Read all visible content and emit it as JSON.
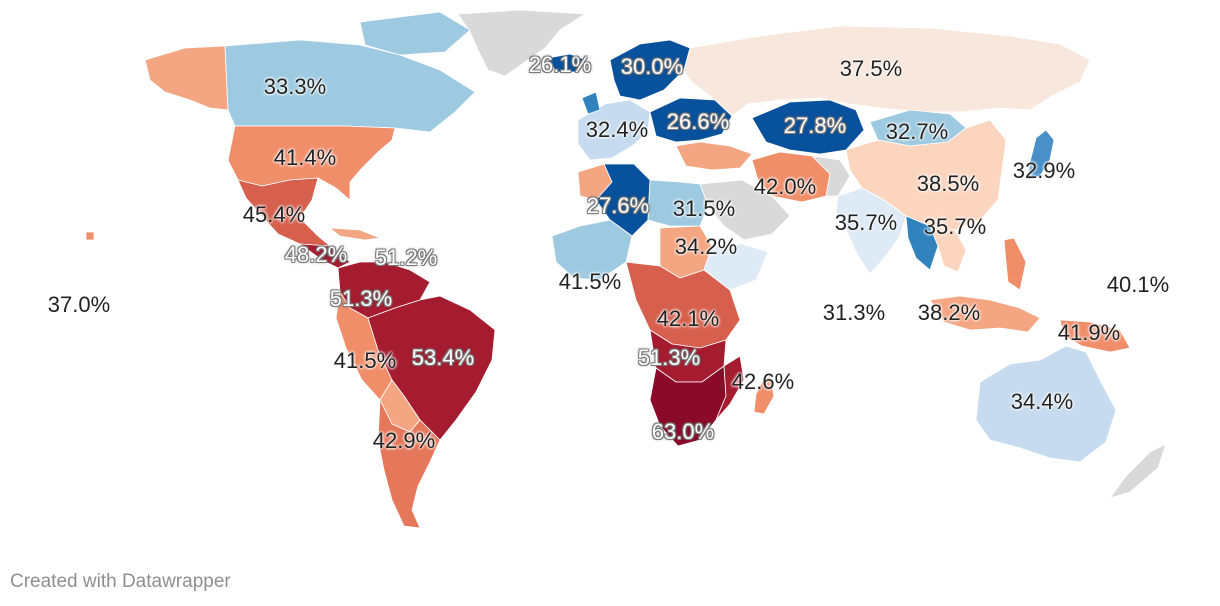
{
  "credit": "Created with Datawrapper",
  "legend_scale": {
    "colors": [
      "#08519c",
      "#3182bd",
      "#9ecae1",
      "#deebf7",
      "#f7e7dd",
      "#f4a582",
      "#d6604d",
      "#a51c30",
      "#8b0a2a"
    ],
    "no_data_color": "#d9d9d9"
  },
  "labels": [
    {
      "id": "iceland",
      "text": "26.1%",
      "style": "light"
    },
    {
      "id": "scandinavia",
      "text": "30.0%",
      "style": "light"
    },
    {
      "id": "russia",
      "text": "37.5%",
      "style": "dark"
    },
    {
      "id": "canada",
      "text": "33.3%",
      "style": "dark"
    },
    {
      "id": "western-europe",
      "text": "32.4%",
      "style": "dark"
    },
    {
      "id": "central-europe",
      "text": "26.6%",
      "style": "light"
    },
    {
      "id": "kazakhstan",
      "text": "27.8%",
      "style": "light"
    },
    {
      "id": "mongolia",
      "text": "32.7%",
      "style": "dark"
    },
    {
      "id": "usa",
      "text": "41.4%",
      "style": "dark"
    },
    {
      "id": "japan",
      "text": "32.9%",
      "style": "dark"
    },
    {
      "id": "iran",
      "text": "42.0%",
      "style": "dark"
    },
    {
      "id": "china",
      "text": "38.5%",
      "style": "dark"
    },
    {
      "id": "algeria",
      "text": "27.6%",
      "style": "light"
    },
    {
      "id": "egypt",
      "text": "31.5%",
      "style": "dark"
    },
    {
      "id": "mexico",
      "text": "45.4%",
      "style": "dark"
    },
    {
      "id": "india",
      "text": "35.7%",
      "style": "dark"
    },
    {
      "id": "myanmar",
      "text": "35.7%",
      "style": "dark"
    },
    {
      "id": "sudan",
      "text": "34.2%",
      "style": "dark"
    },
    {
      "id": "central-america",
      "text": "48.2%",
      "style": "light"
    },
    {
      "id": "caribbean",
      "text": "51.2%",
      "style": "light"
    },
    {
      "id": "west-africa",
      "text": "41.5%",
      "style": "dark"
    },
    {
      "id": "pacific-islands",
      "text": "40.1%",
      "style": "dark"
    },
    {
      "id": "pacific-east",
      "text": "37.0%",
      "style": "dark"
    },
    {
      "id": "colombia",
      "text": "51.3%",
      "style": "light"
    },
    {
      "id": "indian-ocean",
      "text": "31.3%",
      "style": "dark"
    },
    {
      "id": "indonesia",
      "text": "38.2%",
      "style": "dark"
    },
    {
      "id": "central-africa",
      "text": "42.1%",
      "style": "dark"
    },
    {
      "id": "png",
      "text": "41.9%",
      "style": "dark"
    },
    {
      "id": "peru",
      "text": "41.5%",
      "style": "dark"
    },
    {
      "id": "brazil",
      "text": "53.4%",
      "style": "light"
    },
    {
      "id": "zambia",
      "text": "51.3%",
      "style": "light"
    },
    {
      "id": "madagascar",
      "text": "42.6%",
      "style": "dark"
    },
    {
      "id": "australia",
      "text": "34.4%",
      "style": "dark"
    },
    {
      "id": "southern-africa",
      "text": "63.0%",
      "style": "light"
    },
    {
      "id": "argentina",
      "text": "42.9%",
      "style": "dark"
    }
  ]
}
